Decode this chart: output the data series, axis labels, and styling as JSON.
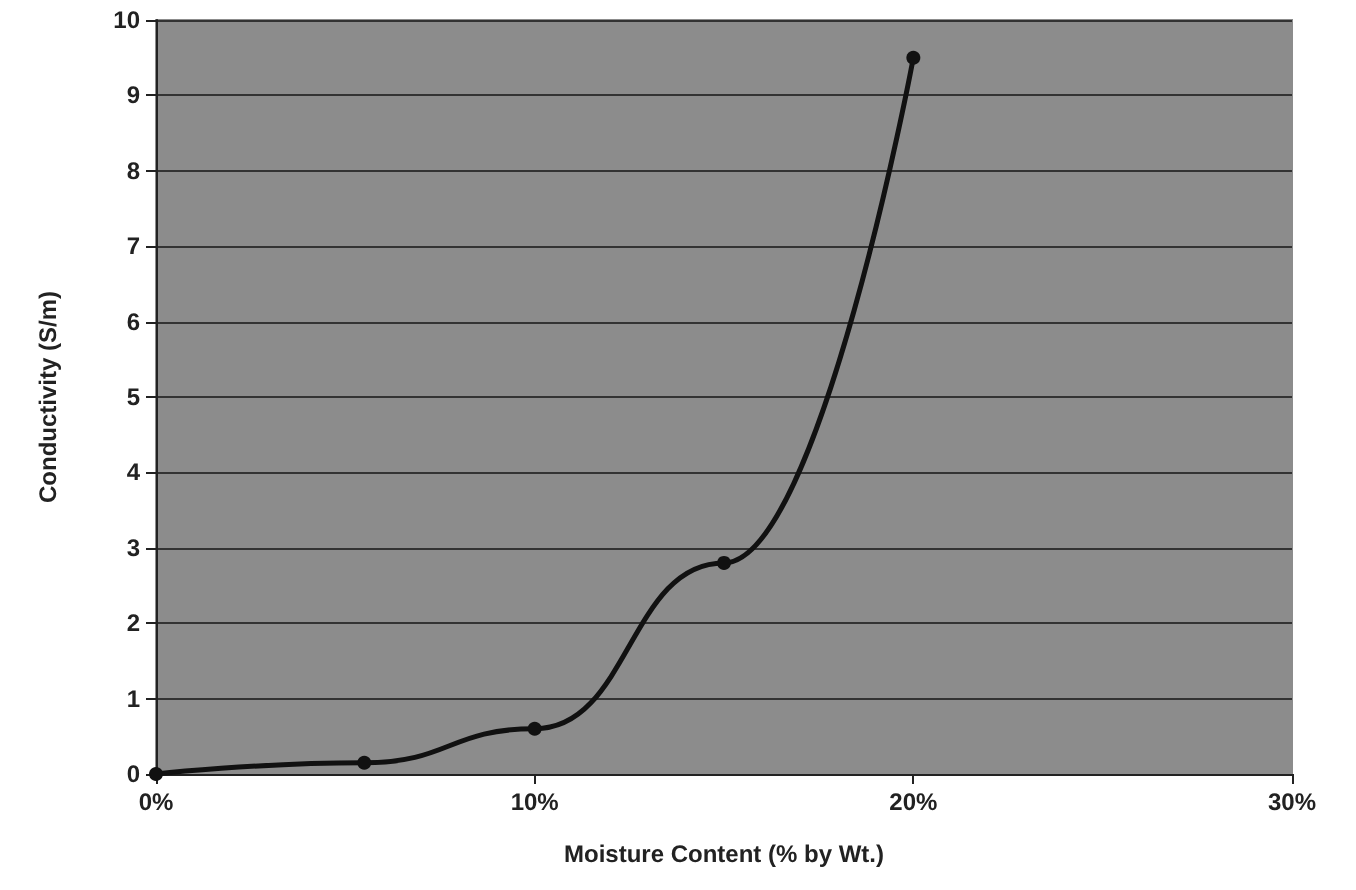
{
  "chart_data": {
    "type": "line",
    "xlabel": "Moisture Content (% by Wt.)",
    "ylabel": "Conductivity (S/m)",
    "x": [
      0,
      5.5,
      10,
      15,
      20
    ],
    "series": [
      {
        "color": "#111111",
        "values": [
          0,
          0.15,
          0.6,
          2.8,
          9.5
        ]
      }
    ],
    "xlim": [
      0,
      30
    ],
    "xticks": [
      {
        "value": 0,
        "label": "0%"
      },
      {
        "value": 10,
        "label": "10%"
      },
      {
        "value": 20,
        "label": "20%"
      },
      {
        "value": 30,
        "label": "30%"
      }
    ],
    "ylim": [
      0,
      10
    ],
    "yticks": [
      0,
      1,
      2,
      3,
      4,
      5,
      6,
      7,
      8,
      9,
      10
    ],
    "grid": "y",
    "marker": "circle",
    "line_style": "solid"
  }
}
